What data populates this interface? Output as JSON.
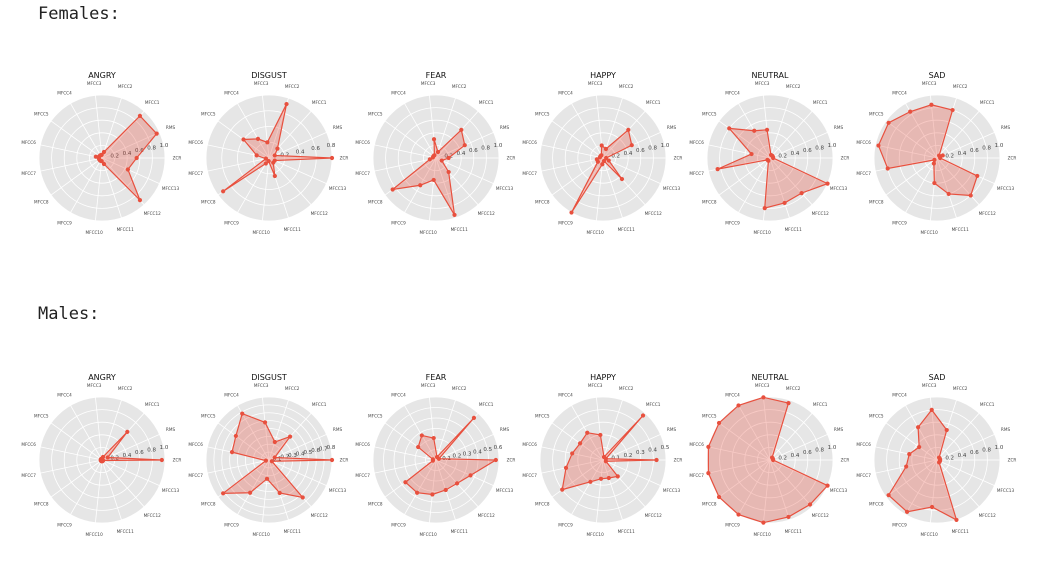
{
  "sections": {
    "females_label": "Females:",
    "males_label": "Males:"
  },
  "chart_data": [
    {
      "group": "Females",
      "charts": [
        {
          "type": "radar",
          "title": "ANGRY",
          "axes": [
            "MFCC1",
            "MFCC2",
            "MFCC3",
            "MFCC4",
            "MFCC5",
            "MFCC6",
            "MFCC7",
            "MFCC8",
            "MFCC9",
            "MFCC10",
            "MFCC11",
            "MFCC12",
            "MFCC13",
            "ZCR",
            "RMS"
          ],
          "rticks": [
            "0.2",
            "0.4",
            "0.6",
            "0.8",
            "1.0"
          ],
          "values": [
            0.9,
            0.1,
            0.05,
            0.05,
            0.05,
            0.1,
            0.05,
            0.05,
            0.05,
            0.05,
            0.1,
            0.9,
            0.45,
            0.55,
            0.95
          ],
          "color": "#e8503e"
        },
        {
          "type": "radar",
          "title": "DISGUST",
          "axes": [
            "MFCC1",
            "MFCC2",
            "MFCC3",
            "MFCC4",
            "MFCC5",
            "MFCC6",
            "MFCC7",
            "MFCC8",
            "MFCC9",
            "MFCC10",
            "MFCC11",
            "MFCC12",
            "MFCC13",
            "ZCR",
            "RMS"
          ],
          "rticks": [
            "0.2",
            "0.4",
            "0.6",
            "0.8"
          ],
          "values": [
            0.2,
            0.9,
            0.25,
            0.35,
            0.5,
            0.2,
            0.05,
            0.9,
            0.1,
            0.05,
            0.3,
            0.1,
            0.1,
            1.0,
            0.1
          ],
          "color": "#e8503e"
        },
        {
          "type": "radar",
          "title": "FEAR",
          "axes": [
            "MFCC1",
            "MFCC2",
            "MFCC3",
            "MFCC4",
            "MFCC5",
            "MFCC6",
            "MFCC7",
            "MFCC8",
            "MFCC9",
            "MFCC10",
            "MFCC11",
            "MFCC12",
            "MFCC13",
            "ZCR",
            "RMS"
          ],
          "rticks": [
            "0.2",
            "0.4",
            "0.6",
            "0.8",
            "1.0"
          ],
          "values": [
            0.6,
            0.1,
            0.3,
            0.05,
            0.05,
            0.05,
            0.1,
            0.85,
            0.5,
            0.35,
            0.95,
            0.3,
            0.1,
            0.2,
            0.5
          ],
          "color": "#e8503e"
        },
        {
          "type": "radar",
          "title": "HAPPY",
          "axes": [
            "MFCC1",
            "MFCC2",
            "MFCC3",
            "MFCC4",
            "MFCC5",
            "MFCC6",
            "MFCC7",
            "MFCC8",
            "MFCC9",
            "MFCC10",
            "MFCC11",
            "MFCC12",
            "MFCC13",
            "ZCR",
            "RMS"
          ],
          "rticks": [
            "0.2",
            "0.4",
            "0.6",
            "0.8",
            "1.0"
          ],
          "values": [
            0.6,
            0.15,
            0.2,
            0.05,
            0.05,
            0.05,
            0.1,
            0.1,
            1.0,
            0.1,
            0.05,
            0.45,
            0.1,
            0.05,
            0.5
          ],
          "color": "#e8503e"
        },
        {
          "type": "radar",
          "title": "NEUTRAL",
          "axes": [
            "MFCC1",
            "MFCC2",
            "MFCC3",
            "MFCC4",
            "MFCC5",
            "MFCC6",
            "MFCC7",
            "MFCC8",
            "MFCC9",
            "MFCC10",
            "MFCC11",
            "MFCC12",
            "MFCC13",
            "ZCR",
            "RMS"
          ],
          "rticks": [
            "0.2",
            "0.4",
            "0.6",
            "0.8",
            "1.0"
          ],
          "values": [
            0.05,
            0.05,
            0.45,
            0.5,
            0.8,
            0.3,
            0.85,
            0.05,
            0.05,
            0.8,
            0.75,
            0.75,
            1.0,
            0.05,
            0.05
          ],
          "color": "#e8503e"
        },
        {
          "type": "radar",
          "title": "SAD",
          "axes": [
            "MFCC1",
            "MFCC2",
            "MFCC3",
            "MFCC4",
            "MFCC5",
            "MFCC6",
            "MFCC7",
            "MFCC8",
            "MFCC9",
            "MFCC10",
            "MFCC11",
            "MFCC12",
            "MFCC13",
            "ZCR",
            "RMS"
          ],
          "rticks": [
            "0.2",
            "0.4",
            "0.6",
            "0.8",
            "1.0"
          ],
          "values": [
            0.05,
            0.8,
            0.85,
            0.85,
            0.95,
            0.95,
            0.8,
            0.05,
            0.1,
            0.4,
            0.6,
            0.8,
            0.7,
            0.05,
            0.1
          ],
          "color": "#e8503e"
        }
      ]
    },
    {
      "group": "Males",
      "charts": [
        {
          "type": "radar",
          "title": "ANGRY",
          "axes": [
            "MFCC1",
            "MFCC2",
            "MFCC3",
            "MFCC4",
            "MFCC5",
            "MFCC6",
            "MFCC7",
            "MFCC8",
            "MFCC9",
            "MFCC10",
            "MFCC11",
            "MFCC12",
            "MFCC13",
            "ZCR",
            "RMS"
          ],
          "rticks": [
            "0.2",
            "0.4",
            "0.6",
            "0.8",
            "1.0"
          ],
          "values": [
            0.6,
            0.05,
            0.02,
            0.02,
            0.02,
            0.02,
            0.02,
            0.02,
            0.02,
            0.02,
            0.02,
            0.02,
            0.02,
            0.95,
            0.1
          ],
          "color": "#e8503e"
        },
        {
          "type": "radar",
          "title": "DISGUST",
          "axes": [
            "MFCC1",
            "MFCC2",
            "MFCC3",
            "MFCC4",
            "MFCC5",
            "MFCC6",
            "MFCC7",
            "MFCC8",
            "MFCC9",
            "MFCC10",
            "MFCC11",
            "MFCC12",
            "MFCC13",
            "ZCR",
            "RMS"
          ],
          "rticks": [
            "0.1",
            "0.2",
            "0.3",
            "0.4",
            "0.5",
            "0.6",
            "0.7",
            "0.8"
          ],
          "values": [
            0.5,
            0.3,
            0.6,
            0.85,
            0.65,
            0.6,
            0.05,
            0.9,
            0.6,
            0.3,
            0.55,
            0.8,
            0.05,
            1.0,
            0.1
          ],
          "color": "#e8503e"
        },
        {
          "type": "radar",
          "title": "FEAR",
          "axes": [
            "MFCC1",
            "MFCC2",
            "MFCC3",
            "MFCC4",
            "MFCC5",
            "MFCC6",
            "MFCC7",
            "MFCC8",
            "MFCC9",
            "MFCC10",
            "MFCC11",
            "MFCC12",
            "MFCC13",
            "ZCR",
            "RMS"
          ],
          "rticks": [
            "0.1",
            "0.2",
            "0.3",
            "0.4",
            "0.5",
            "0.6"
          ],
          "values": [
            0.9,
            0.05,
            0.35,
            0.45,
            0.35,
            0.05,
            0.05,
            0.6,
            0.6,
            0.55,
            0.5,
            0.5,
            0.6,
            0.95,
            0.05
          ],
          "color": "#e8503e"
        },
        {
          "type": "radar",
          "title": "HAPPY",
          "axes": [
            "MFCC1",
            "MFCC2",
            "MFCC3",
            "MFCC4",
            "MFCC5",
            "MFCC6",
            "MFCC7",
            "MFCC8",
            "MFCC9",
            "MFCC10",
            "MFCC11",
            "MFCC12",
            "MFCC13",
            "ZCR",
            "RMS"
          ],
          "rticks": [
            "0.1",
            "0.2",
            "0.3",
            "0.4",
            "0.5"
          ],
          "values": [
            0.95,
            0.05,
            0.4,
            0.5,
            0.45,
            0.5,
            0.6,
            0.8,
            0.4,
            0.3,
            0.3,
            0.35,
            0.05,
            0.85,
            0.05
          ],
          "color": "#e8503e"
        },
        {
          "type": "radar",
          "title": "NEUTRAL",
          "axes": [
            "MFCC1",
            "MFCC2",
            "MFCC3",
            "MFCC4",
            "MFCC5",
            "MFCC6",
            "MFCC7",
            "MFCC8",
            "MFCC9",
            "MFCC10",
            "MFCC11",
            "MFCC12",
            "MFCC13",
            "ZCR",
            "RMS"
          ],
          "rticks": [
            "0.2",
            "0.4",
            "0.6",
            "0.8",
            "1.0"
          ],
          "values": [
            0.05,
            0.95,
            1.0,
            1.0,
            1.0,
            1.0,
            1.0,
            1.0,
            1.0,
            1.0,
            0.95,
            0.95,
            1.0,
            0.05,
            0.05
          ],
          "color": "#e8503e"
        },
        {
          "type": "radar",
          "title": "SAD",
          "axes": [
            "MFCC1",
            "MFCC2",
            "MFCC3",
            "MFCC4",
            "MFCC5",
            "MFCC6",
            "MFCC7",
            "MFCC8",
            "MFCC9",
            "MFCC10",
            "MFCC11",
            "MFCC12",
            "MFCC13",
            "ZCR",
            "RMS"
          ],
          "rticks": [
            "0.2",
            "0.4",
            "0.6",
            "0.8",
            "1.0"
          ],
          "values": [
            0.05,
            0.5,
            0.8,
            0.6,
            0.35,
            0.45,
            0.5,
            0.95,
            0.95,
            0.75,
            1.0,
            0.05,
            0.05,
            0.05,
            0.05
          ],
          "color": "#e8503e"
        }
      ]
    }
  ]
}
